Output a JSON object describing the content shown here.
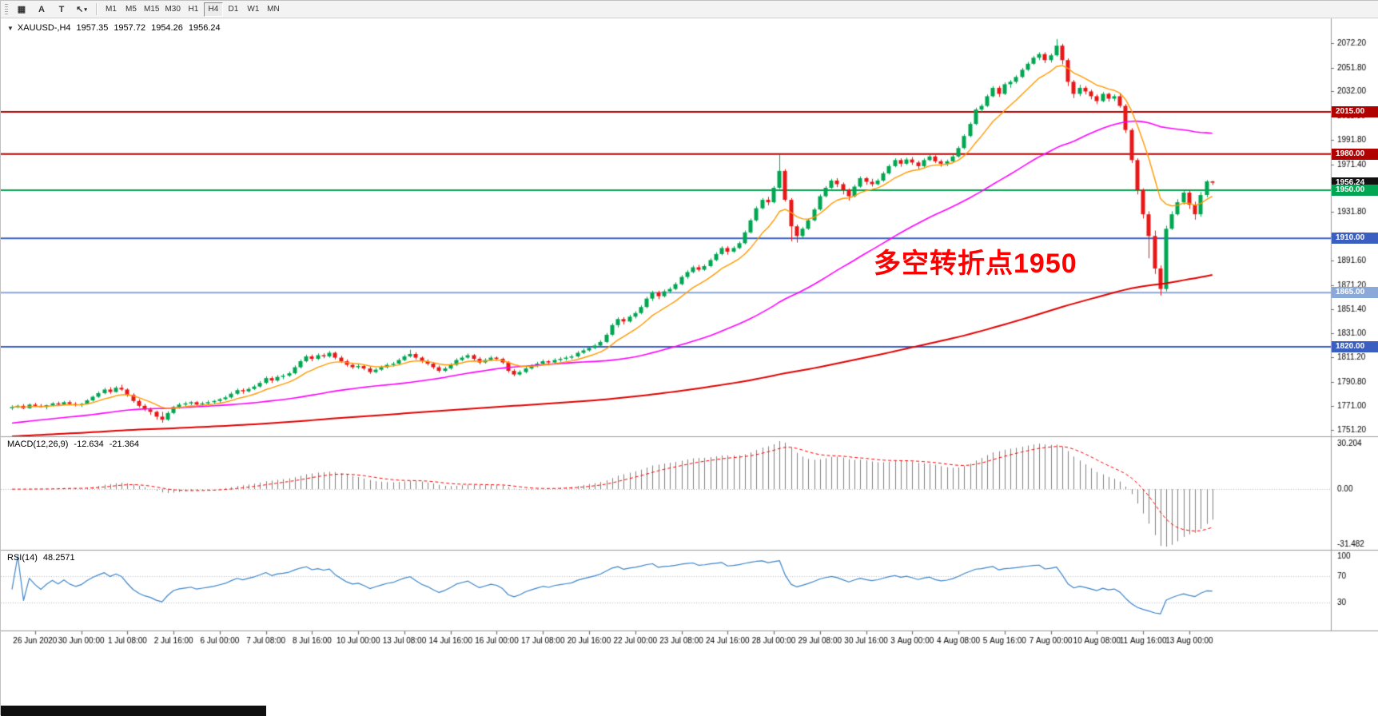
{
  "toolbar": {
    "grid_tool": "▦",
    "label_tool": "A",
    "text_tool": "T",
    "arrow_tool": "↖",
    "timeframes": [
      "M1",
      "M5",
      "M15",
      "M30",
      "H1",
      "H4",
      "D1",
      "W1",
      "MN"
    ],
    "active_timeframe": "H4"
  },
  "main": {
    "title": {
      "symbol_tf": "XAUUSD-,H4",
      "open": "1957.35",
      "high": "1957.72",
      "low": "1954.26",
      "close": "1956.24"
    },
    "annotation": {
      "text": "多空转折点1950",
      "color": "#ff0000"
    },
    "y_ticks": [
      2072.2,
      2051.8,
      2032.0,
      2011.8,
      1991.8,
      1971.4,
      1951.2,
      1931.8,
      1911.4,
      1891.6,
      1871.2,
      1851.4,
      1831.0,
      1811.2,
      1790.8,
      1771.0,
      1751.2
    ],
    "h_lines": [
      {
        "price": 2015.0,
        "color": "#b00000",
        "width": 2
      },
      {
        "price": 1980.0,
        "color": "#b00000",
        "width": 2
      },
      {
        "price": 1950.0,
        "color": "#00a651",
        "width": 2
      },
      {
        "price": 1910.0,
        "color": "#3b5fc0",
        "width": 2
      },
      {
        "price": 1865.0,
        "color": "#8aa8d8",
        "width": 2
      },
      {
        "price": 1820.0,
        "color": "#3b5fc0",
        "width": 2
      }
    ],
    "price_tags": [
      {
        "label": "2015.00",
        "price": 2015.0,
        "bg": "#b00000"
      },
      {
        "label": "1980.00",
        "price": 1980.0,
        "bg": "#b00000"
      },
      {
        "label": "1956.24",
        "price": 1956.24,
        "bg": "#111111"
      },
      {
        "label": "1950.00",
        "price": 1950.0,
        "bg": "#00a651"
      },
      {
        "label": "1910.00",
        "price": 1910.0,
        "bg": "#3b5fc0"
      },
      {
        "label": "1865.00",
        "price": 1865.0,
        "bg": "#8aa8d8"
      },
      {
        "label": "1820.00",
        "price": 1820.0,
        "bg": "#3b5fc0"
      }
    ]
  },
  "chart_data": {
    "type": "candlestick",
    "symbol": "XAUUSD-",
    "timeframe": "H4",
    "ohlc_display": {
      "open": 1957.35,
      "high": 1957.72,
      "low": 1954.26,
      "close": 1956.24
    },
    "colors": {
      "up": "#00a651",
      "down": "#e81717"
    },
    "x_label_start_index": 4,
    "x_label_step": 8,
    "x_labels": [
      "26 Jun 2020",
      "30 Jun 00:00",
      "1 Jul 08:00",
      "2 Jul 16:00",
      "6 Jul 00:00",
      "7 Jul 08:00",
      "8 Jul 16:00",
      "10 Jul 00:00",
      "13 Jul 08:00",
      "14 Jul 16:00",
      "16 Jul 00:00",
      "17 Jul 08:00",
      "20 Jul 16:00",
      "22 Jul 00:00",
      "23 Jul 08:00",
      "24 Jul 16:00",
      "28 Jul 00:00",
      "29 Jul 08:00",
      "30 Jul 16:00",
      "3 Aug 00:00",
      "4 Aug 08:00",
      "5 Aug 16:00",
      "7 Aug 00:00",
      "10 Aug 08:00",
      "11 Aug 16:00",
      "13 Aug 00:00"
    ],
    "candles": [
      [
        1769,
        1771.5,
        1767.5,
        1770
      ],
      [
        1770,
        1772,
        1769,
        1771
      ],
      [
        1771,
        1772.5,
        1768,
        1769
      ],
      [
        1769,
        1773,
        1768.5,
        1772
      ],
      [
        1772,
        1773.5,
        1770,
        1771
      ],
      [
        1771,
        1772.5,
        1769.5,
        1770
      ],
      [
        1770,
        1772,
        1768,
        1771.5
      ],
      [
        1771.5,
        1774,
        1770.5,
        1773
      ],
      [
        1773,
        1774.5,
        1771,
        1772
      ],
      [
        1772,
        1775,
        1771.5,
        1774
      ],
      [
        1774,
        1775.5,
        1771.5,
        1772.5
      ],
      [
        1772.5,
        1774,
        1770.5,
        1771.5
      ],
      [
        1771.5,
        1773.5,
        1770,
        1772.5
      ],
      [
        1772.5,
        1776.5,
        1772,
        1775.5
      ],
      [
        1775.5,
        1779.5,
        1774.5,
        1778.5
      ],
      [
        1778.5,
        1783,
        1777.5,
        1781.5
      ],
      [
        1781.5,
        1786,
        1780.5,
        1784.5
      ],
      [
        1784.5,
        1786.5,
        1781,
        1782.5
      ],
      [
        1782.5,
        1787.5,
        1782,
        1786
      ],
      [
        1786,
        1788.5,
        1783.5,
        1784.5
      ],
      [
        1784.5,
        1785.5,
        1778.5,
        1780
      ],
      [
        1780,
        1781.5,
        1773.5,
        1775
      ],
      [
        1775,
        1776.5,
        1769.5,
        1771
      ],
      [
        1771,
        1772.5,
        1766.5,
        1768
      ],
      [
        1768,
        1769.5,
        1763.5,
        1766
      ],
      [
        1766,
        1767,
        1759.5,
        1762
      ],
      [
        1762,
        1766,
        1757,
        1759.5
      ],
      [
        1759.5,
        1766.5,
        1758.5,
        1765
      ],
      [
        1765,
        1771,
        1764,
        1770
      ],
      [
        1770,
        1773.5,
        1768.5,
        1772
      ],
      [
        1772,
        1774.5,
        1770.5,
        1773
      ],
      [
        1773,
        1775,
        1771.5,
        1774
      ],
      [
        1774,
        1775,
        1770.5,
        1772
      ],
      [
        1772,
        1774.5,
        1771,
        1773
      ],
      [
        1773,
        1775.5,
        1772,
        1774
      ],
      [
        1774,
        1776,
        1772.5,
        1775
      ],
      [
        1775,
        1777.5,
        1773.5,
        1776.5
      ],
      [
        1776.5,
        1779.5,
        1775.5,
        1778
      ],
      [
        1778,
        1782.5,
        1777,
        1781
      ],
      [
        1781,
        1785.5,
        1780,
        1784
      ],
      [
        1784,
        1785.5,
        1781,
        1783
      ],
      [
        1783,
        1786.5,
        1782,
        1785
      ],
      [
        1785,
        1788.5,
        1784,
        1787
      ],
      [
        1787,
        1791.5,
        1786,
        1790
      ],
      [
        1790,
        1795.5,
        1789,
        1794
      ],
      [
        1794,
        1795.5,
        1790,
        1792
      ],
      [
        1792,
        1796.5,
        1791,
        1795
      ],
      [
        1795,
        1797.5,
        1793,
        1796
      ],
      [
        1796,
        1799.5,
        1795,
        1798
      ],
      [
        1798,
        1804.5,
        1797,
        1803
      ],
      [
        1803,
        1809.5,
        1802,
        1808
      ],
      [
        1808,
        1813.5,
        1807,
        1812
      ],
      [
        1812,
        1813.5,
        1808,
        1810
      ],
      [
        1810,
        1814.5,
        1809,
        1813
      ],
      [
        1813,
        1814.5,
        1810.5,
        1812
      ],
      [
        1812,
        1816.5,
        1811,
        1815
      ],
      [
        1815,
        1816,
        1809.5,
        1811
      ],
      [
        1811,
        1812.5,
        1806.5,
        1808
      ],
      [
        1808,
        1809.5,
        1803.5,
        1805
      ],
      [
        1805,
        1806.5,
        1801.5,
        1803
      ],
      [
        1803,
        1805.5,
        1801.5,
        1804
      ],
      [
        1804,
        1805,
        1800.5,
        1802
      ],
      [
        1802,
        1803.5,
        1797.5,
        1799
      ],
      [
        1799,
        1802.5,
        1798,
        1801
      ],
      [
        1801,
        1804.5,
        1800,
        1803
      ],
      [
        1803,
        1806.5,
        1802,
        1805
      ],
      [
        1805,
        1807.5,
        1803.5,
        1806
      ],
      [
        1806,
        1810.5,
        1805,
        1809
      ],
      [
        1809,
        1813.5,
        1808,
        1812
      ],
      [
        1812,
        1817.5,
        1811,
        1814
      ],
      [
        1814,
        1815.5,
        1809.5,
        1811
      ],
      [
        1811,
        1812,
        1806.5,
        1808
      ],
      [
        1808,
        1809.5,
        1804.5,
        1806
      ],
      [
        1806,
        1807,
        1801.5,
        1803
      ],
      [
        1803,
        1804.5,
        1798.5,
        1800
      ],
      [
        1800,
        1803.5,
        1799,
        1802
      ],
      [
        1802,
        1806.5,
        1801,
        1805
      ],
      [
        1805,
        1810.5,
        1804,
        1809
      ],
      [
        1809,
        1812.5,
        1808,
        1811
      ],
      [
        1811,
        1814.5,
        1810,
        1813
      ],
      [
        1813,
        1814,
        1808.5,
        1810
      ],
      [
        1810,
        1811.5,
        1805.5,
        1807
      ],
      [
        1807,
        1810.5,
        1806,
        1809
      ],
      [
        1809,
        1812.5,
        1808,
        1811
      ],
      [
        1811,
        1812,
        1808.5,
        1810
      ],
      [
        1810,
        1811,
        1805.5,
        1807
      ],
      [
        1807,
        1808,
        1798.5,
        1800
      ],
      [
        1800,
        1801.5,
        1795.5,
        1797
      ],
      [
        1797,
        1800.5,
        1796,
        1799
      ],
      [
        1799,
        1803.5,
        1798,
        1802
      ],
      [
        1802,
        1805.5,
        1801,
        1804
      ],
      [
        1804,
        1807.5,
        1803,
        1806
      ],
      [
        1806,
        1809.5,
        1805,
        1808
      ],
      [
        1808,
        1809,
        1804.5,
        1807
      ],
      [
        1807,
        1810.5,
        1806,
        1809
      ],
      [
        1809,
        1811.5,
        1807.5,
        1810
      ],
      [
        1810,
        1812.5,
        1808.5,
        1811
      ],
      [
        1811,
        1813.5,
        1809.5,
        1812
      ],
      [
        1812,
        1816.5,
        1811,
        1815
      ],
      [
        1815,
        1818.5,
        1814,
        1817
      ],
      [
        1817,
        1820.5,
        1816,
        1819
      ],
      [
        1819,
        1822.5,
        1818,
        1821
      ],
      [
        1821,
        1825.5,
        1820,
        1824
      ],
      [
        1824,
        1831.5,
        1823,
        1830
      ],
      [
        1830,
        1839.5,
        1829,
        1838
      ],
      [
        1838,
        1844.5,
        1836,
        1843
      ],
      [
        1843,
        1844.5,
        1838.5,
        1841
      ],
      [
        1841,
        1846.5,
        1840,
        1845
      ],
      [
        1845,
        1849.5,
        1843.5,
        1848
      ],
      [
        1848,
        1854.5,
        1847,
        1853
      ],
      [
        1853,
        1861.5,
        1852,
        1860
      ],
      [
        1860,
        1866.5,
        1858,
        1865
      ],
      [
        1865,
        1866.5,
        1859.5,
        1862
      ],
      [
        1862,
        1867.5,
        1861,
        1866
      ],
      [
        1866,
        1869.5,
        1864.5,
        1868
      ],
      [
        1868,
        1873.5,
        1867,
        1872
      ],
      [
        1872,
        1879.5,
        1871,
        1878
      ],
      [
        1878,
        1883.5,
        1876.5,
        1882
      ],
      [
        1882,
        1887.5,
        1881,
        1886
      ],
      [
        1886,
        1888,
        1882.5,
        1884
      ],
      [
        1884,
        1888.5,
        1883,
        1887
      ],
      [
        1887,
        1893.5,
        1886,
        1892
      ],
      [
        1892,
        1898.5,
        1891,
        1897
      ],
      [
        1897,
        1903.5,
        1896,
        1902
      ],
      [
        1902,
        1903.5,
        1896.5,
        1899
      ],
      [
        1899,
        1903.5,
        1898,
        1902
      ],
      [
        1902,
        1907.5,
        1901,
        1906
      ],
      [
        1906,
        1916.5,
        1905,
        1915
      ],
      [
        1915,
        1926.5,
        1914,
        1925
      ],
      [
        1925,
        1936.5,
        1924,
        1935
      ],
      [
        1935,
        1943.5,
        1934,
        1942
      ],
      [
        1942,
        1944.5,
        1937.5,
        1940
      ],
      [
        1940,
        1953.5,
        1939,
        1952
      ],
      [
        1952,
        1979.5,
        1951,
        1966
      ],
      [
        1966,
        1967.5,
        1940.5,
        1942
      ],
      [
        1942,
        1943.5,
        1907.5,
        1920
      ],
      [
        1920,
        1921.5,
        1906.5,
        1912
      ],
      [
        1912,
        1919.5,
        1910,
        1918
      ],
      [
        1918,
        1926.5,
        1917,
        1925
      ],
      [
        1925,
        1935.5,
        1924,
        1934
      ],
      [
        1934,
        1946.5,
        1933,
        1945
      ],
      [
        1945,
        1953.5,
        1944,
        1952
      ],
      [
        1952,
        1959.5,
        1951,
        1958
      ],
      [
        1958,
        1960,
        1952.5,
        1955
      ],
      [
        1955,
        1956.5,
        1946.5,
        1950
      ],
      [
        1950,
        1951.5,
        1941.5,
        1945
      ],
      [
        1945,
        1954.5,
        1944,
        1953
      ],
      [
        1953,
        1961.5,
        1952,
        1960
      ],
      [
        1960,
        1961,
        1954.5,
        1957
      ],
      [
        1957,
        1959.5,
        1953,
        1955
      ],
      [
        1955,
        1959.5,
        1954,
        1958
      ],
      [
        1958,
        1965.5,
        1957,
        1964
      ],
      [
        1964,
        1971.5,
        1963,
        1970
      ],
      [
        1970,
        1976.5,
        1969,
        1975
      ],
      [
        1975,
        1976.5,
        1969.5,
        1972
      ],
      [
        1972,
        1977,
        1971,
        1975.5
      ],
      [
        1975.5,
        1977.5,
        1971,
        1973
      ],
      [
        1973,
        1974.5,
        1967.5,
        1970
      ],
      [
        1970,
        1976.5,
        1969,
        1975
      ],
      [
        1975,
        1979.5,
        1974,
        1978
      ],
      [
        1978,
        1979,
        1972.5,
        1974
      ],
      [
        1974,
        1975.5,
        1969.5,
        1972
      ],
      [
        1972,
        1975.5,
        1970,
        1974
      ],
      [
        1974,
        1979.5,
        1973,
        1978
      ],
      [
        1978,
        1986.5,
        1977,
        1985
      ],
      [
        1985,
        1996.5,
        1984,
        1995
      ],
      [
        1995,
        2006.5,
        1994,
        2005
      ],
      [
        2005,
        2018.5,
        2004,
        2017
      ],
      [
        2017,
        2021.5,
        2015,
        2020
      ],
      [
        2020,
        2029.5,
        2019,
        2028
      ],
      [
        2028,
        2036.5,
        2027,
        2035
      ],
      [
        2035,
        2036.5,
        2027.5,
        2030
      ],
      [
        2030,
        2039.5,
        2029,
        2038
      ],
      [
        2038,
        2041.5,
        2035,
        2040
      ],
      [
        2040,
        2045.5,
        2038.5,
        2044
      ],
      [
        2044,
        2051.5,
        2043,
        2050
      ],
      [
        2050,
        2056.5,
        2049,
        2055
      ],
      [
        2055,
        2061.5,
        2054,
        2060
      ],
      [
        2060,
        2064.5,
        2058,
        2063
      ],
      [
        2063,
        2064.5,
        2055.5,
        2058
      ],
      [
        2058,
        2063.5,
        2056,
        2062
      ],
      [
        2062,
        2075.5,
        2061,
        2070
      ],
      [
        2070,
        2071.5,
        2054.5,
        2058
      ],
      [
        2058,
        2059.5,
        2036.5,
        2040
      ],
      [
        2040,
        2041.5,
        2026.5,
        2030
      ],
      [
        2030,
        2037.5,
        2028,
        2035
      ],
      [
        2035,
        2036.5,
        2029.5,
        2032
      ],
      [
        2032,
        2033.5,
        2025.5,
        2028
      ],
      [
        2028,
        2029.5,
        2021.5,
        2024
      ],
      [
        2024,
        2031.5,
        2023,
        2030
      ],
      [
        2030,
        2031,
        2023.5,
        2026
      ],
      [
        2026,
        2029.5,
        2024,
        2028
      ],
      [
        2028,
        2030.5,
        2018.5,
        2020
      ],
      [
        2020,
        2021.5,
        1997.5,
        2000
      ],
      [
        2000,
        2001.5,
        1972.5,
        1975
      ],
      [
        1975,
        1976.5,
        1946.5,
        1950
      ],
      [
        1950,
        1951.5,
        1926.5,
        1930
      ],
      [
        1930,
        1932.5,
        1893.5,
        1912
      ],
      [
        1912,
        1916.5,
        1880.5,
        1885
      ],
      [
        1885,
        1887.5,
        1862.5,
        1868
      ],
      [
        1868,
        1920.5,
        1866,
        1918
      ],
      [
        1918,
        1932.5,
        1917,
        1930
      ],
      [
        1930,
        1942.5,
        1929,
        1940
      ],
      [
        1940,
        1949.5,
        1938,
        1948
      ],
      [
        1948,
        1949.5,
        1934.5,
        1938
      ],
      [
        1938,
        1940.5,
        1925.5,
        1930
      ],
      [
        1930,
        1948.5,
        1928,
        1946
      ],
      [
        1946,
        1958.5,
        1944,
        1957.35
      ],
      [
        1957.35,
        1957.72,
        1954.26,
        1956.24
      ]
    ],
    "moving_averages": [
      {
        "name": "ma-fast",
        "method": "ema",
        "period": 10,
        "color": "#ff9900",
        "width": 1.4
      },
      {
        "name": "ma-medium",
        "method": "sma",
        "period": 50,
        "color": "#ff00ff",
        "width": 1.6,
        "prehistory": {
          "len": 60,
          "from": 1738,
          "to": 1769
        }
      },
      {
        "name": "ma-slow",
        "method": "sma",
        "period": 200,
        "color": "#e00000",
        "width": 2,
        "prehistory": {
          "len": 250,
          "from": 1710,
          "to": 1769
        }
      }
    ],
    "indicators": {
      "macd": {
        "label": "MACD(12,26,9)",
        "value": "-12.634",
        "signal": "-21.364",
        "fast": 12,
        "slow": 26,
        "signal_period": 9,
        "axis_max": "30.204",
        "axis_zero": "0.00",
        "axis_min": "-31.482",
        "histogram_color": "#808080",
        "signal_color": "#ff0000"
      },
      "rsi": {
        "label": "RSI(14)",
        "value": "48.2571",
        "period": 14,
        "levels": [
          100,
          70,
          30
        ],
        "color": "#3d85c8"
      }
    }
  }
}
